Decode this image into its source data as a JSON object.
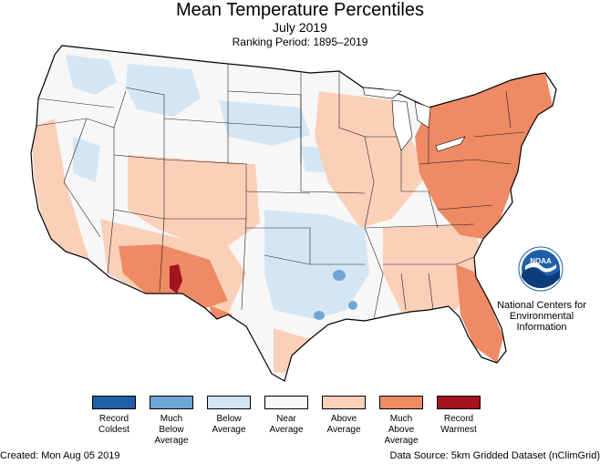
{
  "title": "Mean Temperature Percentiles",
  "subtitle": "July 2019",
  "period": "Ranking Period: 1895–2019",
  "legend": [
    {
      "label": "Record\nColdest",
      "color": "#1f5fa8"
    },
    {
      "label": "Much\nBelow\nAverage",
      "color": "#6fa6d6"
    },
    {
      "label": "Below\nAverage",
      "color": "#d4e6f4"
    },
    {
      "label": "Near\nAverage",
      "color": "#f7f7f7"
    },
    {
      "label": "Above\nAverage",
      "color": "#fbd0b9"
    },
    {
      "label": "Much\nAbove\nAverage",
      "color": "#ee8a64"
    },
    {
      "label": "Record\nWarmest",
      "color": "#a3141e"
    }
  ],
  "org": {
    "logo_text": "NOAA",
    "name": "National Centers for\nEnvironmental\nInformation"
  },
  "footer": {
    "created": "Created: Mon Aug 05 2019",
    "source": "Data Source: 5km Gridded Dataset (nClimGrid)"
  }
}
